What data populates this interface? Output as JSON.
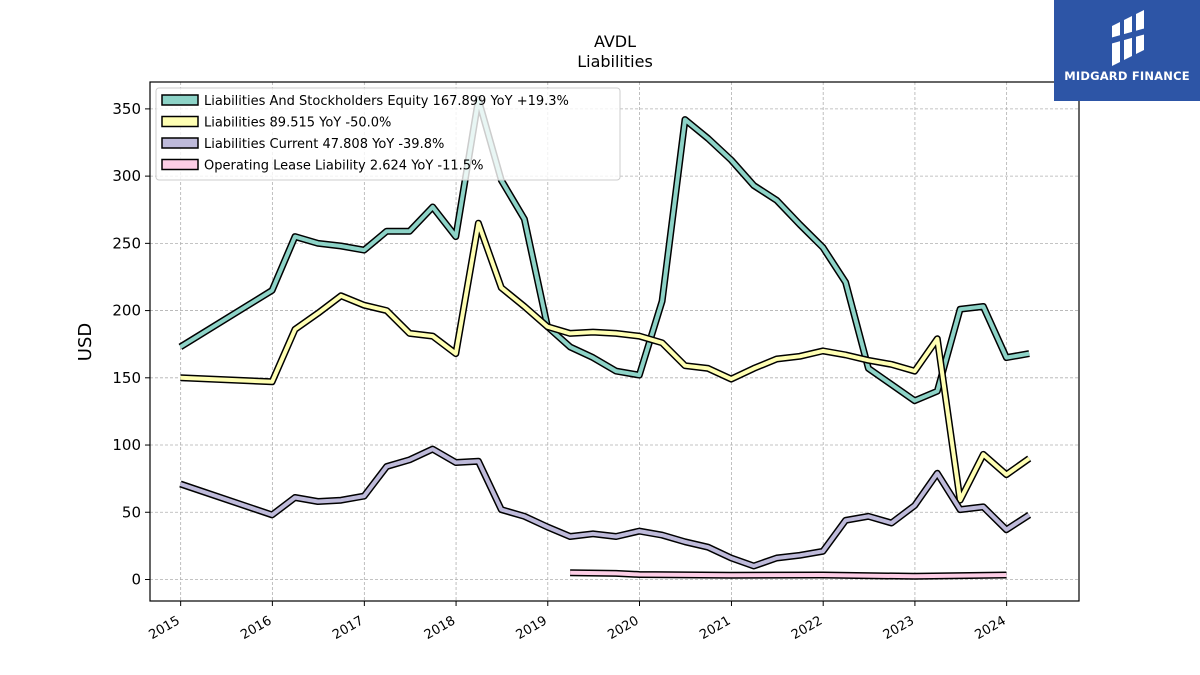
{
  "logo": {
    "text": "MIDGARD FINANCE",
    "background": "#2d55a6"
  },
  "chart_data": {
    "type": "line",
    "title": "AVDL",
    "subtitle": "Liabilities",
    "ylabel": "USD",
    "xlabel": "",
    "xlim": [
      "2014-09-01",
      "2024-10-15"
    ],
    "ylim": [
      -16,
      370
    ],
    "yticks": [
      0,
      50,
      100,
      150,
      200,
      250,
      300,
      350
    ],
    "xticks": [
      "2015",
      "2016",
      "2017",
      "2018",
      "2019",
      "2020",
      "2021",
      "2022",
      "2023",
      "2024"
    ],
    "grid": true,
    "legend_position": "top-left",
    "series": [
      {
        "name": "Liabilities And Stockholders Equity  167.899 YoY +19.3%",
        "color": "#8dd3c7",
        "points": [
          [
            "2014-12-31",
            173
          ],
          [
            "2015-12-31",
            215
          ],
          [
            "2016-03-31",
            255
          ],
          [
            "2016-06-30",
            250
          ],
          [
            "2016-09-30",
            248
          ],
          [
            "2016-12-31",
            245
          ],
          [
            "2017-03-31",
            259
          ],
          [
            "2017-06-30",
            259
          ],
          [
            "2017-09-30",
            277
          ],
          [
            "2017-12-31",
            255
          ],
          [
            "2018-03-31",
            357
          ],
          [
            "2018-06-30",
            297
          ],
          [
            "2018-09-30",
            268
          ],
          [
            "2018-12-31",
            188
          ],
          [
            "2019-03-31",
            173
          ],
          [
            "2019-06-30",
            165
          ],
          [
            "2019-09-30",
            155
          ],
          [
            "2019-12-31",
            152
          ],
          [
            "2020-03-31",
            207
          ],
          [
            "2020-06-30",
            342
          ],
          [
            "2020-09-30",
            328
          ],
          [
            "2020-12-31",
            312
          ],
          [
            "2021-03-31",
            293
          ],
          [
            "2021-06-30",
            282
          ],
          [
            "2021-09-30",
            264
          ],
          [
            "2021-12-31",
            247
          ],
          [
            "2022-03-31",
            221
          ],
          [
            "2022-06-30",
            157
          ],
          [
            "2022-09-30",
            145
          ],
          [
            "2022-12-31",
            133
          ],
          [
            "2023-03-31",
            140
          ],
          [
            "2023-06-30",
            201
          ],
          [
            "2023-09-30",
            203
          ],
          [
            "2023-12-31",
            165
          ],
          [
            "2024-03-31",
            168
          ]
        ]
      },
      {
        "name": "Liabilities  89.515 YoY -50.0%",
        "color": "#ffffb3",
        "points": [
          [
            "2014-12-31",
            150
          ],
          [
            "2015-12-31",
            147
          ],
          [
            "2016-03-31",
            186
          ],
          [
            "2016-06-30",
            198
          ],
          [
            "2016-09-30",
            211
          ],
          [
            "2016-12-31",
            204
          ],
          [
            "2017-03-31",
            200
          ],
          [
            "2017-06-30",
            183
          ],
          [
            "2017-09-30",
            181
          ],
          [
            "2017-12-31",
            168
          ],
          [
            "2018-03-31",
            265
          ],
          [
            "2018-06-30",
            217
          ],
          [
            "2018-09-30",
            203
          ],
          [
            "2018-12-31",
            188
          ],
          [
            "2019-03-31",
            183
          ],
          [
            "2019-06-30",
            184
          ],
          [
            "2019-09-30",
            183
          ],
          [
            "2019-12-31",
            181
          ],
          [
            "2020-03-31",
            176
          ],
          [
            "2020-06-30",
            159
          ],
          [
            "2020-09-30",
            157
          ],
          [
            "2020-12-31",
            149
          ],
          [
            "2021-03-31",
            157
          ],
          [
            "2021-06-30",
            164
          ],
          [
            "2021-09-30",
            166
          ],
          [
            "2021-12-31",
            170
          ],
          [
            "2022-03-31",
            167
          ],
          [
            "2022-06-30",
            163
          ],
          [
            "2022-09-30",
            160
          ],
          [
            "2022-12-31",
            155
          ],
          [
            "2023-03-31",
            179
          ],
          [
            "2023-06-30",
            59
          ],
          [
            "2023-09-30",
            93
          ],
          [
            "2023-12-31",
            78
          ],
          [
            "2024-03-31",
            90
          ]
        ]
      },
      {
        "name": "Liabilities Current  47.808 YoY -39.8%",
        "color": "#bebada",
        "points": [
          [
            "2014-12-31",
            71
          ],
          [
            "2015-12-31",
            48
          ],
          [
            "2016-03-31",
            61
          ],
          [
            "2016-06-30",
            58
          ],
          [
            "2016-09-30",
            59
          ],
          [
            "2016-12-31",
            62
          ],
          [
            "2017-03-31",
            84
          ],
          [
            "2017-06-30",
            89
          ],
          [
            "2017-09-30",
            97
          ],
          [
            "2017-12-31",
            87
          ],
          [
            "2018-03-31",
            88
          ],
          [
            "2018-06-30",
            52
          ],
          [
            "2018-09-30",
            47
          ],
          [
            "2018-12-31",
            39
          ],
          [
            "2019-03-31",
            32
          ],
          [
            "2019-06-30",
            34
          ],
          [
            "2019-09-30",
            32
          ],
          [
            "2019-12-31",
            36
          ],
          [
            "2020-03-31",
            33
          ],
          [
            "2020-06-30",
            28
          ],
          [
            "2020-09-30",
            24
          ],
          [
            "2020-12-31",
            16
          ],
          [
            "2021-03-31",
            10
          ],
          [
            "2021-06-30",
            16
          ],
          [
            "2021-09-30",
            18
          ],
          [
            "2021-12-31",
            21
          ],
          [
            "2022-03-31",
            44
          ],
          [
            "2022-06-30",
            47
          ],
          [
            "2022-09-30",
            42
          ],
          [
            "2022-12-31",
            55
          ],
          [
            "2023-03-31",
            79
          ],
          [
            "2023-06-30",
            52
          ],
          [
            "2023-09-30",
            54
          ],
          [
            "2023-12-31",
            37
          ],
          [
            "2024-03-31",
            48
          ]
        ]
      },
      {
        "name": "Operating Lease Liability  2.624 YoY -11.5%",
        "color": "#fccde5",
        "points": [
          [
            "2019-03-31",
            5
          ],
          [
            "2019-09-30",
            4.5
          ],
          [
            "2019-12-31",
            3.7
          ],
          [
            "2020-12-31",
            3.2
          ],
          [
            "2021-12-31",
            3.3
          ],
          [
            "2022-12-31",
            2.4
          ],
          [
            "2023-12-31",
            3.3
          ]
        ]
      }
    ]
  }
}
